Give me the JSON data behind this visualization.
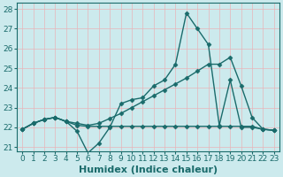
{
  "title": "",
  "xlabel": "Humidex (Indice chaleur)",
  "ylabel": "",
  "bg_color": "#cceaed",
  "line_color": "#1a6b6b",
  "grid_color": "#e8b4b8",
  "xlim": [
    -0.5,
    23.5
  ],
  "ylim": [
    20.8,
    28.3
  ],
  "xticks": [
    0,
    1,
    2,
    3,
    4,
    5,
    6,
    7,
    8,
    9,
    10,
    11,
    12,
    13,
    14,
    15,
    16,
    17,
    18,
    19,
    20,
    21,
    22,
    23
  ],
  "yticks": [
    21,
    22,
    23,
    24,
    25,
    26,
    27,
    28
  ],
  "line1_x": [
    0,
    1,
    2,
    3,
    4,
    5,
    6,
    7,
    8,
    9,
    10,
    11,
    12,
    13,
    14,
    15,
    16,
    17,
    18,
    19,
    20,
    21,
    22,
    23
  ],
  "line1_y": [
    21.9,
    22.2,
    22.4,
    22.5,
    22.3,
    21.8,
    20.7,
    21.2,
    22.0,
    23.2,
    23.4,
    23.5,
    24.1,
    24.4,
    25.2,
    27.8,
    27.0,
    26.2,
    22.1,
    24.4,
    22.0,
    22.0,
    21.9,
    21.85
  ],
  "line2_x": [
    0,
    1,
    2,
    3,
    4,
    5,
    6,
    7,
    8,
    9,
    10,
    11,
    12,
    13,
    14,
    15,
    16,
    17,
    18,
    19,
    20,
    21,
    22,
    23
  ],
  "line2_y": [
    21.9,
    22.2,
    22.4,
    22.5,
    22.3,
    22.1,
    22.05,
    22.05,
    22.05,
    22.05,
    22.05,
    22.05,
    22.05,
    22.05,
    22.05,
    22.05,
    22.05,
    22.05,
    22.05,
    22.05,
    22.05,
    22.05,
    21.9,
    21.85
  ],
  "line3_x": [
    0,
    1,
    2,
    3,
    4,
    5,
    6,
    7,
    8,
    9,
    10,
    11,
    12,
    13,
    14,
    15,
    16,
    17,
    18,
    19,
    20,
    21,
    22,
    23
  ],
  "line3_y": [
    21.9,
    22.2,
    22.4,
    22.5,
    22.3,
    22.2,
    22.1,
    22.2,
    22.45,
    22.7,
    23.0,
    23.3,
    23.6,
    23.9,
    24.2,
    24.5,
    24.85,
    25.2,
    25.2,
    25.55,
    24.1,
    22.5,
    21.9,
    21.85
  ],
  "marker": "D",
  "markersize": 2.5,
  "linewidth": 1.0,
  "font_color": "#1a6b6b",
  "xlabel_fontsize": 8,
  "tick_fontsize": 6.5
}
